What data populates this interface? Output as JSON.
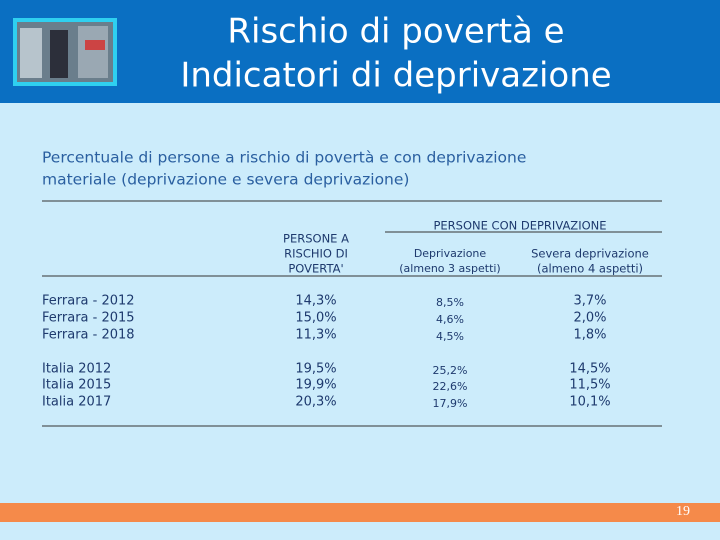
{
  "header": {
    "title": [
      "Rischio di povertà e",
      "Indicatori di deprivazione"
    ]
  },
  "subtitle": [
    "Percentuale di persone a rischio di povertà e con deprivazione",
    "materiale (deprivazione e severa deprivazione)"
  ],
  "table": {
    "group_header": "PERSONE CON DEPRIVAZIONE",
    "columns": [
      [
        "PERSONE A",
        "RISCHIO DI",
        "POVERTA'"
      ],
      [
        "Deprivazione",
        "(almeno 3 aspetti)"
      ],
      [
        "Severa deprivazione",
        "(almeno 4 aspetti)"
      ]
    ],
    "rows": [
      [
        "Ferrara - 2012",
        "14,3%",
        "8,5%",
        "3,7%"
      ],
      [
        "Ferrara - 2015",
        "15,0%",
        "4,6%",
        "2,0%"
      ],
      [
        "Ferrara - 2018",
        "11,3%",
        "4,5%",
        "1,8%"
      ],
      [
        "Italia 2012",
        "19,5%",
        "25,2%",
        "14,5%"
      ],
      [
        "Italia 2015",
        "19,9%",
        "22,6%",
        "11,5%"
      ],
      [
        "Italia 2017",
        "20,3%",
        "17,9%",
        "10,1%"
      ]
    ]
  },
  "footer": {
    "page_number": "19"
  }
}
